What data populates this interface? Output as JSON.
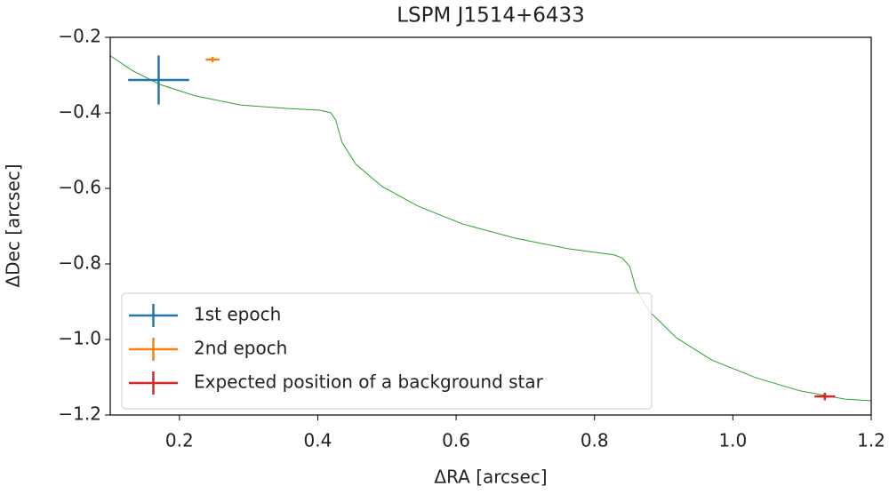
{
  "chart_data": {
    "type": "errorbar",
    "title": "LSPM J1514+6433",
    "x_label": "ΔRA [arcsec]",
    "y_label": "ΔDec [arcsec]",
    "xlim": [
      0.1,
      1.2
    ],
    "ylim": [
      -1.2,
      -0.2
    ],
    "xticks": [
      0.2,
      0.4,
      0.6,
      0.8,
      {
        "value": 1.0,
        "label": "1.0"
      },
      1.2
    ],
    "yticks": [
      {
        "value": -1.2,
        "label": "−1.2"
      },
      {
        "value": -1.0,
        "label": "−1.0"
      },
      {
        "value": -0.8,
        "label": "−0.8"
      },
      {
        "value": -0.6,
        "label": "−0.6"
      },
      {
        "value": -0.4,
        "label": "−0.4"
      },
      {
        "value": -0.2,
        "label": "−0.2"
      }
    ],
    "legend": "lower left",
    "series": [
      {
        "name": "1st epoch",
        "color": "#1f77b4",
        "x": [
          0.17
        ],
        "y": [
          -0.313
        ],
        "xerr": [
          0.044
        ],
        "yerr": [
          0.065
        ]
      },
      {
        "name": "2nd epoch",
        "color": "#ff7f0e",
        "x": [
          0.248
        ],
        "y": [
          -0.259
        ],
        "xerr": [
          0.01
        ],
        "yerr": [
          0.007
        ]
      },
      {
        "name": "Expected position of a background star",
        "color": "#d62728",
        "x": [
          1.133
        ],
        "y": [
          -1.151
        ],
        "xerr": [
          0.015
        ],
        "yerr": [
          0.01
        ]
      }
    ],
    "curve": {
      "color": "#2ca02c",
      "x": [
        0.1,
        0.133,
        0.172,
        0.223,
        0.288,
        0.352,
        0.403,
        0.419,
        0.426,
        0.435,
        0.455,
        0.493,
        0.545,
        0.609,
        0.686,
        0.763,
        0.828,
        0.84,
        0.851,
        0.86,
        0.879,
        0.918,
        0.969,
        1.033,
        1.097,
        1.162,
        1.2
      ],
      "y": [
        -0.249,
        -0.289,
        -0.325,
        -0.355,
        -0.379,
        -0.388,
        -0.393,
        -0.4,
        -0.419,
        -0.478,
        -0.536,
        -0.595,
        -0.647,
        -0.694,
        -0.732,
        -0.76,
        -0.776,
        -0.784,
        -0.807,
        -0.866,
        -0.925,
        -0.995,
        -1.054,
        -1.101,
        -1.136,
        -1.158,
        -1.162
      ]
    }
  }
}
